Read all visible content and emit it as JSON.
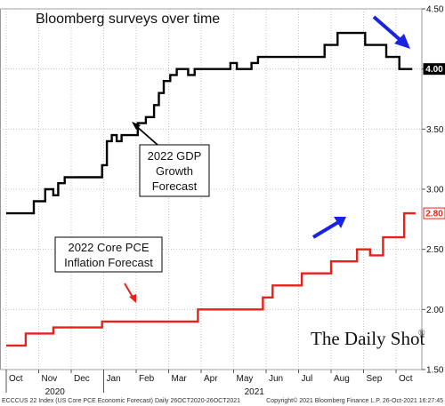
{
  "chart_data": {
    "type": "line",
    "title": "Bloomberg surveys over time",
    "ylim": [
      1.5,
      4.5
    ],
    "y_ticks": [
      "1.50",
      "2.00",
      "2.50",
      "3.00",
      "3.50",
      "4.00",
      "4.50"
    ],
    "y_axis_side": "right",
    "grid": true,
    "x_ticks": [
      "Oct",
      "Nov",
      "Dec",
      "Jan",
      "Feb",
      "Mar",
      "Apr",
      "May",
      "Jun",
      "Jul",
      "Aug",
      "Sep",
      "Oct"
    ],
    "x_years": [
      "2020",
      "2021"
    ],
    "series": [
      {
        "name": "2022 GDP Growth Forecast",
        "color": "#000000",
        "end_label": "4.00",
        "points": [
          [
            0,
            2.8
          ],
          [
            0.85,
            2.8
          ],
          [
            0.85,
            2.9
          ],
          [
            1.2,
            2.9
          ],
          [
            1.2,
            3.0
          ],
          [
            1.45,
            3.0
          ],
          [
            1.45,
            2.95
          ],
          [
            1.6,
            2.95
          ],
          [
            1.6,
            3.05
          ],
          [
            1.8,
            3.05
          ],
          [
            1.8,
            3.1
          ],
          [
            2.95,
            3.1
          ],
          [
            2.95,
            3.2
          ],
          [
            3.1,
            3.2
          ],
          [
            3.1,
            3.4
          ],
          [
            3.25,
            3.4
          ],
          [
            3.25,
            3.45
          ],
          [
            3.4,
            3.45
          ],
          [
            3.4,
            3.4
          ],
          [
            3.55,
            3.4
          ],
          [
            3.55,
            3.45
          ],
          [
            4.05,
            3.45
          ],
          [
            4.05,
            3.55
          ],
          [
            4.3,
            3.55
          ],
          [
            4.3,
            3.6
          ],
          [
            4.55,
            3.6
          ],
          [
            4.55,
            3.7
          ],
          [
            4.7,
            3.7
          ],
          [
            4.7,
            3.8
          ],
          [
            4.85,
            3.8
          ],
          [
            4.85,
            3.9
          ],
          [
            5.05,
            3.9
          ],
          [
            5.05,
            3.95
          ],
          [
            5.25,
            3.95
          ],
          [
            5.25,
            4.0
          ],
          [
            5.6,
            4.0
          ],
          [
            5.6,
            3.95
          ],
          [
            5.8,
            3.95
          ],
          [
            5.8,
            4.0
          ],
          [
            6.9,
            4.0
          ],
          [
            6.9,
            4.05
          ],
          [
            7.1,
            4.05
          ],
          [
            7.1,
            4.0
          ],
          [
            7.55,
            4.0
          ],
          [
            7.55,
            4.05
          ],
          [
            7.75,
            4.05
          ],
          [
            7.75,
            4.1
          ],
          [
            9.8,
            4.1
          ],
          [
            9.8,
            4.2
          ],
          [
            10.2,
            4.2
          ],
          [
            10.2,
            4.3
          ],
          [
            11.05,
            4.3
          ],
          [
            11.05,
            4.2
          ],
          [
            11.7,
            4.2
          ],
          [
            11.7,
            4.1
          ],
          [
            12.1,
            4.1
          ],
          [
            12.1,
            4.0
          ],
          [
            12.5,
            4.0
          ]
        ]
      },
      {
        "name": "2022 Core PCE Inflation Forecast",
        "color": "#e8211b",
        "end_label": "2.80",
        "points": [
          [
            0,
            1.7
          ],
          [
            0.6,
            1.7
          ],
          [
            0.6,
            1.8
          ],
          [
            1.45,
            1.8
          ],
          [
            1.45,
            1.85
          ],
          [
            2.95,
            1.85
          ],
          [
            2.95,
            1.9
          ],
          [
            5.9,
            1.9
          ],
          [
            5.9,
            2.0
          ],
          [
            7.9,
            2.0
          ],
          [
            7.9,
            2.1
          ],
          [
            8.2,
            2.1
          ],
          [
            8.2,
            2.2
          ],
          [
            9.1,
            2.2
          ],
          [
            9.1,
            2.3
          ],
          [
            10.0,
            2.3
          ],
          [
            10.0,
            2.4
          ],
          [
            10.8,
            2.4
          ],
          [
            10.8,
            2.5
          ],
          [
            11.2,
            2.5
          ],
          [
            11.2,
            2.45
          ],
          [
            11.6,
            2.45
          ],
          [
            11.6,
            2.6
          ],
          [
            12.25,
            2.6
          ],
          [
            12.25,
            2.8
          ],
          [
            12.6,
            2.8
          ]
        ]
      }
    ],
    "annotations": [
      {
        "name": "gdp-annotation",
        "lines": [
          "2022 GDP",
          "Growth",
          "Forecast"
        ]
      },
      {
        "name": "pce-annotation",
        "lines": [
          "2022 Core PCE",
          "Inflation Forecast"
        ]
      }
    ]
  },
  "footer": {
    "left": "ECCCUS 22 Index (US Core PCE Economic Forecast)  Daily 26OCT2020-26OCT2021",
    "right": "Copyright© 2021 Bloomberg Finance L.P.     26-Oct-2021 16:27:45"
  },
  "brand": {
    "text": "The Daily Shot",
    "mark": "®"
  },
  "colors": {
    "arrow": "#1a23e0",
    "gdp": "#000000",
    "pce": "#e8211b"
  }
}
